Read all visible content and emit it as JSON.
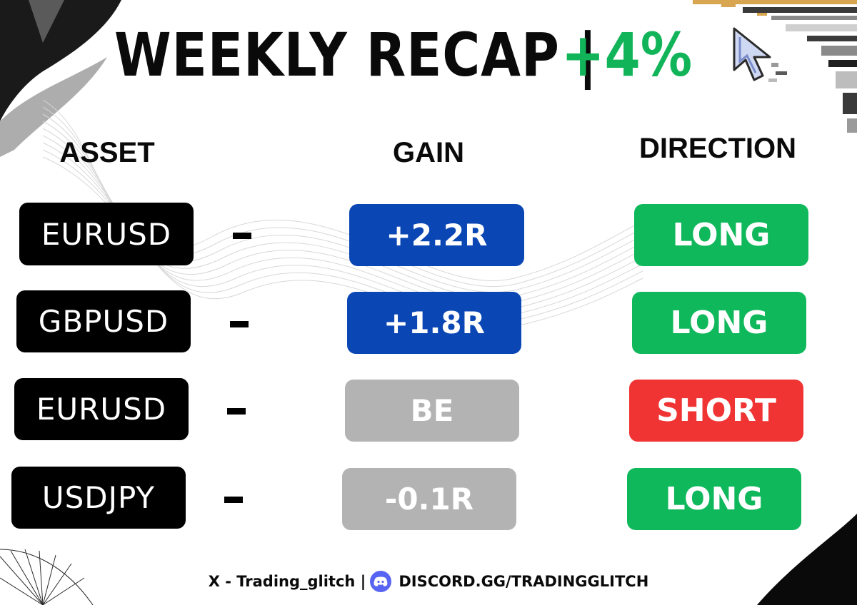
{
  "header": {
    "title": "WEEKLY RECAP |",
    "percent": "+4%"
  },
  "columns": {
    "asset": "ASSET",
    "gain": "GAIN",
    "direction": "DIRECTION"
  },
  "rows": [
    {
      "asset": "EURUSD",
      "gain": "+2.2R",
      "gain_status": "positive",
      "direction": "LONG"
    },
    {
      "asset": "GBPUSD",
      "gain": "+1.8R",
      "gain_status": "positive",
      "direction": "LONG"
    },
    {
      "asset": "EURUSD",
      "gain": "BE",
      "gain_status": "neutral",
      "direction": "SHORT"
    },
    {
      "asset": "USDJPY",
      "gain": "-0.1R",
      "gain_status": "neutral",
      "direction": "LONG"
    }
  ],
  "footer": {
    "x_handle": "X - Trading_glitch |",
    "discord_link": "DISCORD.GG/TRADINGGLITCH"
  },
  "colors": {
    "positive_gain": "#0a46b4",
    "neutral_gain": "#b3b3b3",
    "long": "#10b85c",
    "short": "#f03434",
    "accent_green": "#12b45a"
  }
}
